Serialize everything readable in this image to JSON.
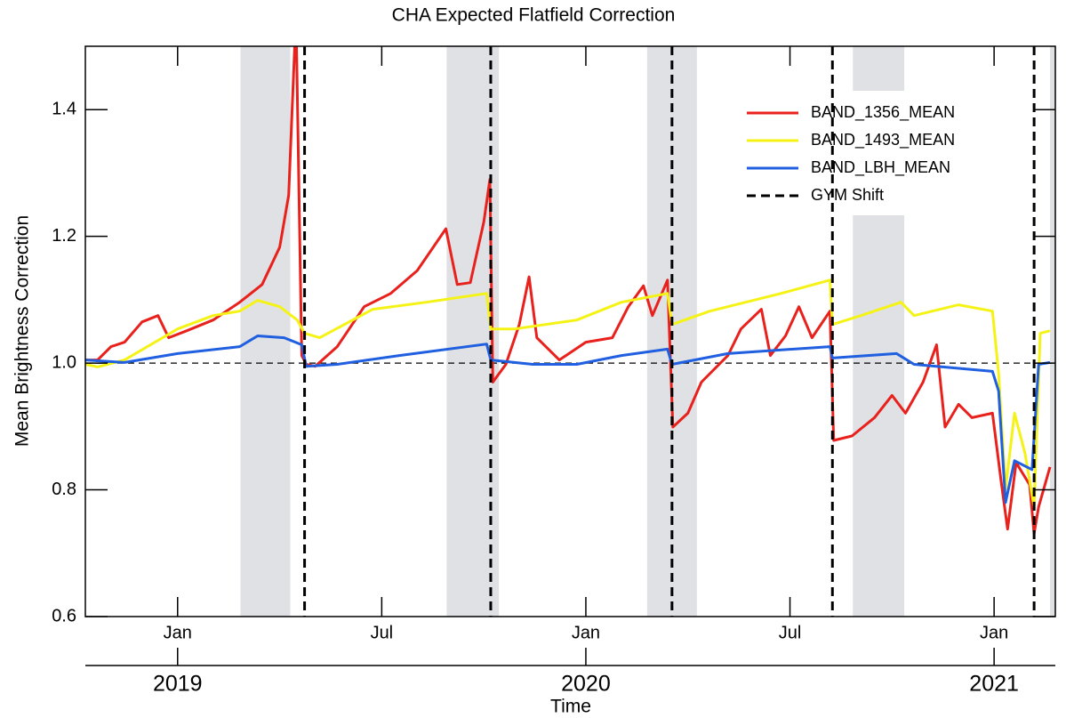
{
  "chart_data": {
    "type": "line",
    "title": "CHA Expected Flatfield Correction",
    "y_label": "Mean Brightness Correction",
    "x_label": "Time",
    "xlim": [
      2018.774,
      2021.15
    ],
    "ylim": [
      0.6,
      1.5
    ],
    "yticks": [
      0.6,
      0.8,
      {
        "value": 1,
        "label": "1.0"
      },
      1.2,
      1.4
    ],
    "xticks": [
      {
        "value": 2019,
        "label": "Jan"
      },
      {
        "value": 2019.5,
        "label": "Jul"
      },
      {
        "value": 2020,
        "label": "Jan"
      },
      {
        "value": 2020.5,
        "label": "Jul"
      },
      {
        "value": 2021,
        "label": "Jan"
      }
    ],
    "year_ticks": [
      {
        "value": 2019,
        "label": "2019"
      },
      {
        "value": 2020,
        "label": "2020"
      },
      {
        "value": 2021,
        "label": "2021"
      }
    ],
    "reference_line": 1,
    "shaded_regions": [
      [
        2019.154,
        2019.276
      ],
      [
        2019.659,
        2019.787
      ],
      [
        2020.15,
        2020.272
      ],
      [
        2020.654,
        2020.78
      ],
      [
        2021.137,
        2021.15
      ]
    ],
    "vlines": {
      "name": "GYM Shift",
      "color": "#000000",
      "x": [
        2019.311,
        2019.767,
        2020.211,
        2020.604,
        2021.098
      ]
    },
    "legend": "upper right",
    "series": [
      {
        "name": "BAND_1356_MEAN",
        "color": "#e8211d",
        "x": [
          2018.774,
          2018.804,
          2018.837,
          2018.87,
          2018.913,
          2018.952,
          2018.978,
          2019.022,
          2019.087,
          2019.152,
          2019.207,
          2019.25,
          2019.272,
          2019.29,
          2019.304,
          2019.315,
          2019.337,
          2019.391,
          2019.457,
          2019.522,
          2019.587,
          2019.657,
          2019.685,
          2019.717,
          2019.75,
          2019.765,
          2019.772,
          2019.804,
          2019.837,
          2019.861,
          2019.88,
          2019.935,
          2020.0,
          2020.065,
          2020.104,
          2020.141,
          2020.163,
          2020.2,
          2020.213,
          2020.25,
          2020.283,
          2020.348,
          2020.38,
          2020.43,
          2020.452,
          2020.489,
          2020.522,
          2020.554,
          2020.598,
          2020.607,
          2020.652,
          2020.707,
          2020.75,
          2020.783,
          2020.826,
          2020.859,
          2020.88,
          2020.913,
          2020.946,
          2020.996,
          2021.017,
          2021.033,
          2021.054,
          2021.087,
          2021.098,
          2021.109,
          2021.137
        ],
        "values": [
          1.005,
          1.005,
          1.026,
          1.033,
          1.065,
          1.075,
          1.04,
          1.051,
          1.068,
          1.096,
          1.124,
          1.183,
          1.265,
          1.55,
          1.012,
          0.998,
          0.995,
          1.026,
          1.089,
          1.11,
          1.146,
          1.212,
          1.124,
          1.127,
          1.223,
          1.29,
          0.97,
          0.998,
          1.061,
          1.136,
          1.04,
          1.005,
          1.033,
          1.04,
          1.089,
          1.122,
          1.075,
          1.131,
          0.899,
          0.921,
          0.97,
          1.012,
          1.054,
          1.085,
          1.012,
          1.043,
          1.089,
          1.04,
          1.082,
          0.878,
          0.885,
          0.914,
          0.949,
          0.921,
          0.97,
          1.029,
          0.899,
          0.935,
          0.914,
          0.921,
          0.815,
          0.738,
          0.843,
          0.808,
          0.731,
          0.773,
          0.836
        ]
      },
      {
        "name": "BAND_1493_MEAN",
        "color": "#f5f316",
        "x": [
          2018.774,
          2018.804,
          2018.87,
          2019.0,
          2019.087,
          2019.152,
          2019.196,
          2019.25,
          2019.293,
          2019.311,
          2019.348,
          2019.478,
          2019.609,
          2019.757,
          2019.767,
          2019.826,
          2019.978,
          2020.087,
          2020.2,
          2020.211,
          2020.304,
          2020.478,
          2020.598,
          2020.604,
          2020.674,
          2020.772,
          2020.804,
          2020.913,
          2020.996,
          2021.011,
          2021.028,
          2021.05,
          2021.076,
          2021.098,
          2021.113,
          2021.137
        ],
        "values": [
          0.998,
          0.994,
          1.005,
          1.054,
          1.075,
          1.082,
          1.099,
          1.089,
          1.068,
          1.047,
          1.04,
          1.085,
          1.096,
          1.11,
          1.054,
          1.054,
          1.068,
          1.096,
          1.11,
          1.061,
          1.082,
          1.11,
          1.131,
          1.061,
          1.075,
          1.096,
          1.075,
          1.092,
          1.082,
          0.984,
          0.801,
          0.921,
          0.857,
          0.773,
          1.047,
          1.051
        ]
      },
      {
        "name": "BAND_LBH_MEAN",
        "color": "#1f5fe0",
        "x": [
          2018.774,
          2018.87,
          2019.0,
          2019.152,
          2019.196,
          2019.261,
          2019.304,
          2019.315,
          2019.391,
          2019.543,
          2019.757,
          2019.767,
          2019.87,
          2019.978,
          2020.087,
          2020.2,
          2020.211,
          2020.348,
          2020.598,
          2020.604,
          2020.761,
          2020.804,
          2020.996,
          2021.011,
          2021.028,
          2021.05,
          2021.093,
          2021.109,
          2021.137
        ],
        "values": [
          1.005,
          1.001,
          1.015,
          1.026,
          1.043,
          1.04,
          1.029,
          0.995,
          0.998,
          1.012,
          1.03,
          1.005,
          0.998,
          0.998,
          1.012,
          1.022,
          0.998,
          1.015,
          1.026,
          1.008,
          1.015,
          0.998,
          0.987,
          0.956,
          0.78,
          0.846,
          0.832,
          0.998,
          1.001
        ]
      }
    ]
  }
}
